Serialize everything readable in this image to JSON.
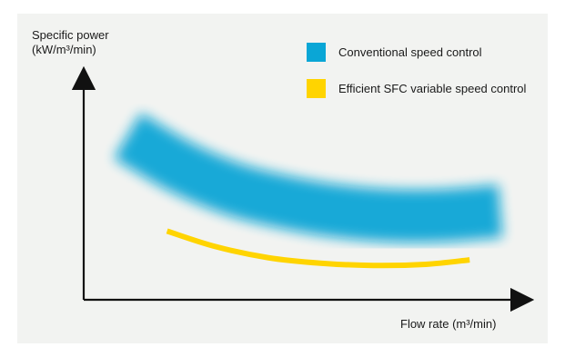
{
  "chart_data": {
    "type": "line",
    "ylabel_line1": "Specific power",
    "ylabel_line2": "(kW/m³/min)",
    "xlabel": "Flow rate (m³/min)",
    "grid": false,
    "legend_position": "top-right",
    "series": [
      {
        "name": "Conventional speed control",
        "color": "#0aa6d6",
        "style": "blurred-band",
        "values": [
          {
            "x": 0.1,
            "y": 0.74
          },
          {
            "x": 0.22,
            "y": 0.6
          },
          {
            "x": 0.34,
            "y": 0.5
          },
          {
            "x": 0.46,
            "y": 0.44
          },
          {
            "x": 0.58,
            "y": 0.4
          },
          {
            "x": 0.7,
            "y": 0.38
          },
          {
            "x": 0.82,
            "y": 0.38
          },
          {
            "x": 0.95,
            "y": 0.4
          }
        ]
      },
      {
        "name": "Efficient SFC variable speed control",
        "color": "#ffd400",
        "style": "thick-line",
        "values": [
          {
            "x": 0.19,
            "y": 0.31
          },
          {
            "x": 0.3,
            "y": 0.24
          },
          {
            "x": 0.42,
            "y": 0.19
          },
          {
            "x": 0.54,
            "y": 0.165
          },
          {
            "x": 0.66,
            "y": 0.155
          },
          {
            "x": 0.78,
            "y": 0.16
          },
          {
            "x": 0.88,
            "y": 0.18
          }
        ]
      }
    ],
    "xlim": [
      0,
      1
    ],
    "ylim": [
      0,
      1
    ]
  }
}
